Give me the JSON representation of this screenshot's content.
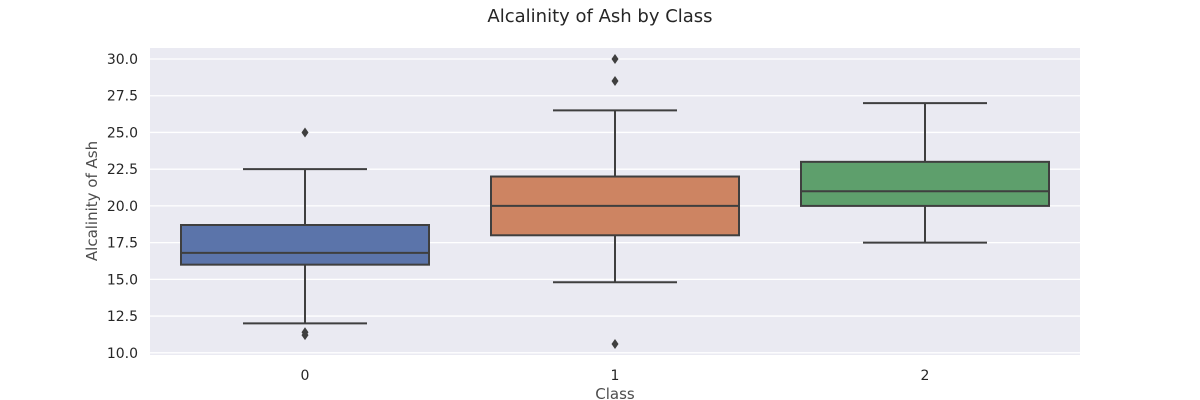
{
  "chart_data": {
    "type": "box",
    "title": "Alcalinity of Ash by Class",
    "xlabel": "Class",
    "ylabel": "Alcalinity of Ash",
    "categories": [
      "0",
      "1",
      "2"
    ],
    "ylim": [
      9.85,
      30.75
    ],
    "yticks": [
      "10.0",
      "12.5",
      "15.0",
      "17.5",
      "20.0",
      "22.5",
      "25.0",
      "27.5",
      "30.0"
    ],
    "grid": true,
    "boxes": [
      {
        "category": "0",
        "whisker_low": 12.0,
        "q1": 16.0,
        "median": 16.8,
        "q3": 18.7,
        "whisker_high": 22.5,
        "outliers": [
          25.0,
          11.4,
          11.2
        ],
        "color": "#5b74aa"
      },
      {
        "category": "1",
        "whisker_low": 14.8,
        "q1": 18.0,
        "median": 20.0,
        "q3": 22.0,
        "whisker_high": 26.5,
        "outliers": [
          30.0,
          28.5,
          10.6
        ],
        "color": "#cd8462"
      },
      {
        "category": "2",
        "whisker_low": 17.5,
        "q1": 20.0,
        "median": 21.0,
        "q3": 23.0,
        "whisker_high": 27.0,
        "outliers": [],
        "color": "#5e9f6c"
      }
    ]
  }
}
